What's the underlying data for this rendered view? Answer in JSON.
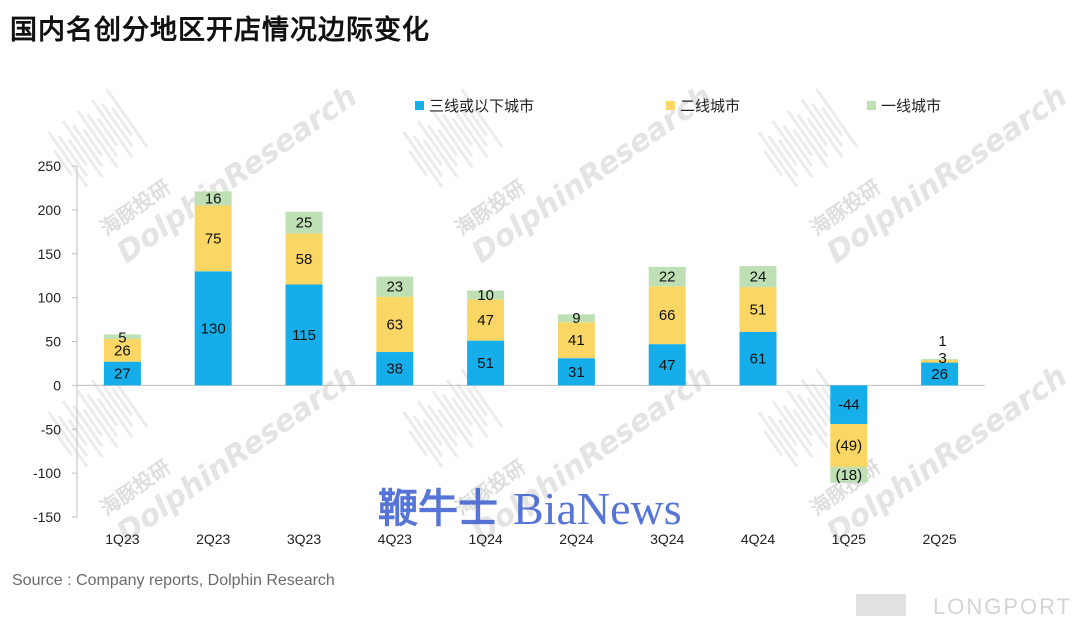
{
  "title": "国内名创分地区开店情况边际变化",
  "source": "Source : Company reports, Dolphin Research",
  "watermarks": {
    "cn": "海豚投研",
    "en": "DolphinResearch",
    "bianews_cn": "鞭牛士",
    "bianews_en": "BiaNews",
    "longport": "LONGPORT"
  },
  "colors": {
    "tier3": "#16AEEA",
    "tier2": "#FAD664",
    "tier1": "#BFE0B4",
    "axis": "#BFBFBF"
  },
  "chart_data": {
    "type": "bar",
    "stacked": true,
    "title": "国内名创分地区开店情况边际变化",
    "categories": [
      "1Q23",
      "2Q23",
      "3Q23",
      "4Q23",
      "1Q24",
      "2Q24",
      "3Q24",
      "4Q24",
      "1Q25",
      "2Q25"
    ],
    "series": [
      {
        "name": "三线或以下城市",
        "color": "#16AEEA",
        "values": [
          27,
          130,
          115,
          38,
          51,
          31,
          47,
          61,
          -44,
          26
        ],
        "labels": [
          "27",
          "130",
          "115",
          "38",
          "51",
          "31",
          "47",
          "61",
          "-44",
          "26"
        ]
      },
      {
        "name": "二线城市",
        "color": "#FAD664",
        "values": [
          26,
          75,
          58,
          63,
          47,
          41,
          66,
          51,
          -49,
          3
        ],
        "labels": [
          "26",
          "75",
          "58",
          "63",
          "47",
          "41",
          "66",
          "51",
          "(49)",
          "3"
        ]
      },
      {
        "name": "一线城市",
        "color": "#BFE0B4",
        "values": [
          5,
          16,
          25,
          23,
          10,
          9,
          22,
          24,
          -18,
          1
        ],
        "labels": [
          "5",
          "16",
          "25",
          "23",
          "10",
          "9",
          "22",
          "24",
          "(18)",
          "1"
        ]
      }
    ],
    "yticks": [
      "250",
      "200",
      "150",
      "100",
      "50",
      "0",
      "-50",
      "-100",
      "-150"
    ],
    "ylim": [
      -150,
      250
    ],
    "legend_position": "top-right",
    "grid": false
  }
}
